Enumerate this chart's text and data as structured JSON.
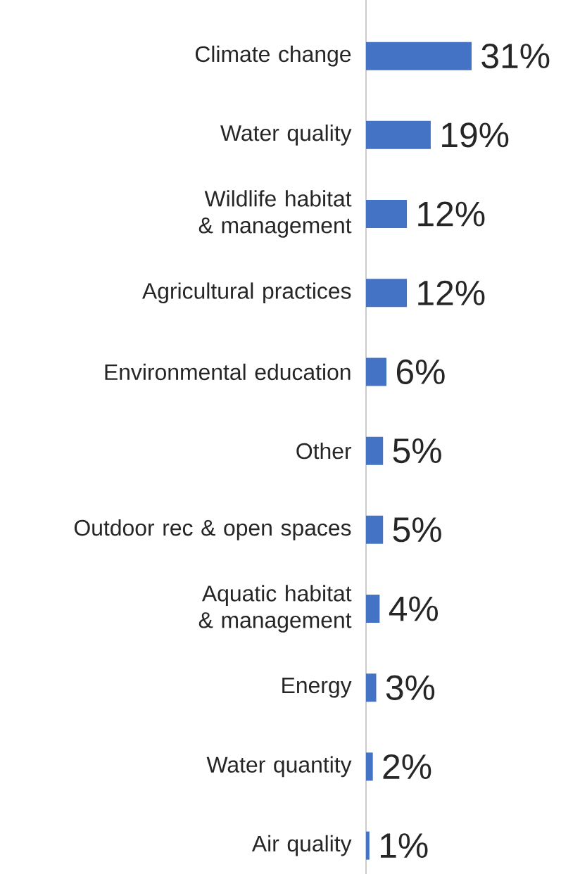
{
  "chart_data": {
    "type": "bar",
    "orientation": "horizontal",
    "color": "#4472c4",
    "categories": [
      "Climate change",
      "Water quality",
      "Wildlife habitat & management",
      "Agricultural practices",
      "Environmental education",
      "Other",
      "Outdoor rec & open spaces",
      "Aquatic habitat & management",
      "Energy",
      "Water quantity",
      "Air quality"
    ],
    "values": [
      31,
      19,
      12,
      12,
      6,
      5,
      5,
      4,
      3,
      2,
      1
    ],
    "value_labels": [
      "31%",
      "19%",
      "12%",
      "12%",
      "6%",
      "5%",
      "5%",
      "4%",
      "3%",
      "2%",
      "1%"
    ]
  }
}
